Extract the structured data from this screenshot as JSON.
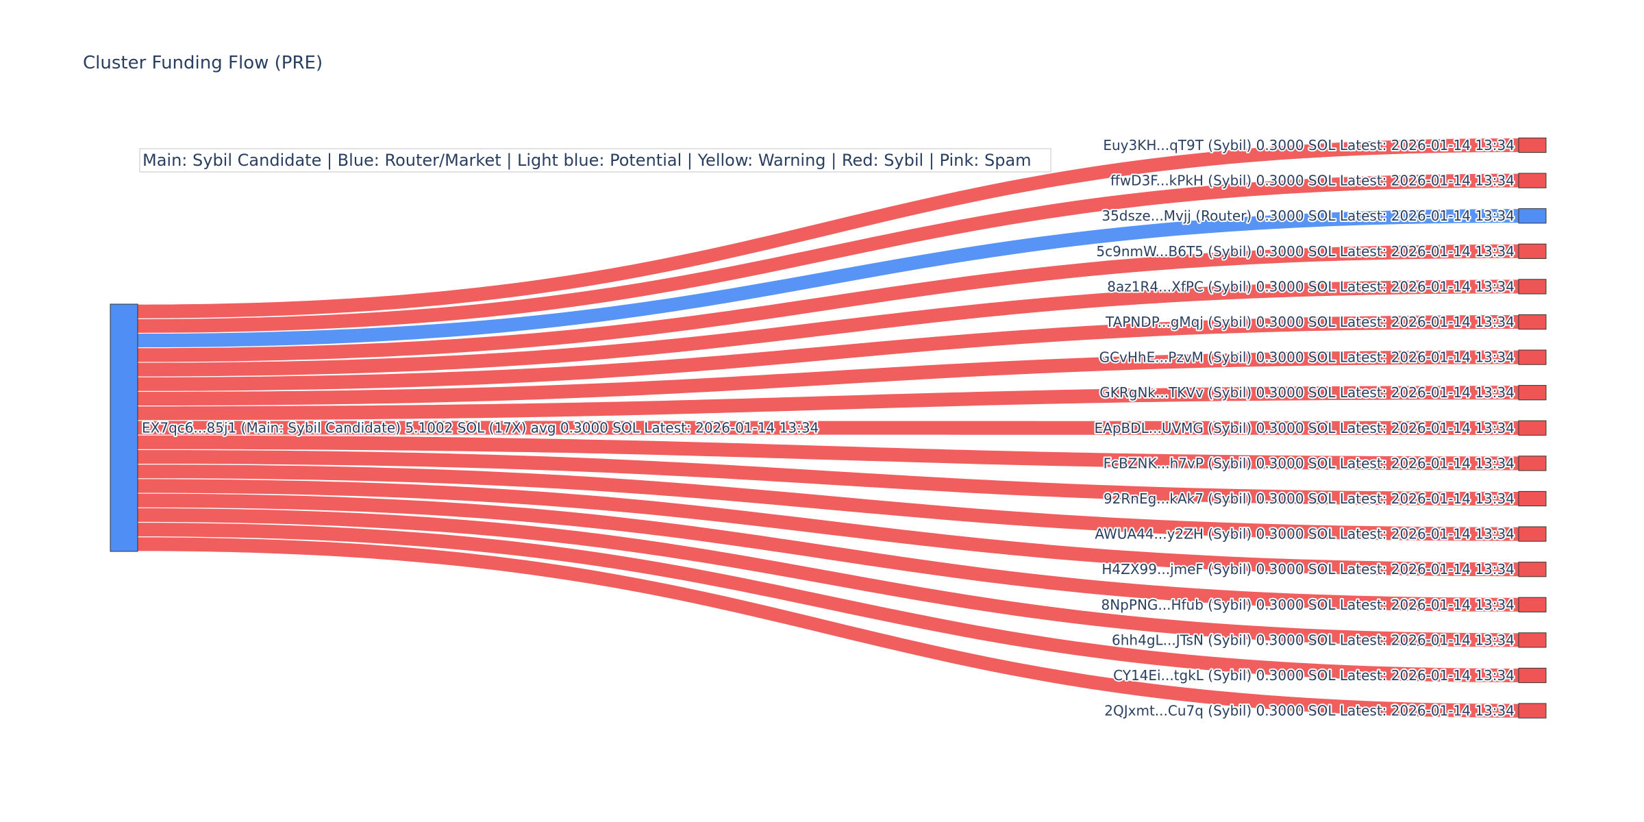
{
  "title": "Cluster Funding Flow (PRE)",
  "legend_text": "Main: Sybil Candidate  |  Blue: Router/Market | Light blue: Potential | Yellow: Warning | Red: Sybil | Pink: Spam",
  "colors": {
    "main": "#4f8ef5",
    "router": "#4f8ef5",
    "sybil": "#ef5555",
    "node_border": "#333333",
    "text": "#2a3f5f"
  },
  "chart_data": {
    "type": "sankey",
    "source": {
      "id": "EX7qc6...85j1",
      "role": "Main: Sybil Candidate",
      "total_sol": 5.1002,
      "count_label": "17X",
      "avg_sol": 0.3,
      "latest": "2026-01-14 13:34",
      "label": "EX7qc6...85j1 (Main: Sybil Candidate) 5.1002 SOL (17X) avg 0.3000 SOL Latest: 2026-01-14 13:34"
    },
    "targets": [
      {
        "id": "Euy3KH...qT9T",
        "role": "Sybil",
        "value": 0.3,
        "label": "Euy3KH...qT9T (Sybil) 0.3000 SOL Latest: 2026-01-14 13:34"
      },
      {
        "id": "ffwD3F...kPkH",
        "role": "Sybil",
        "value": 0.3,
        "label": "ffwD3F...kPkH (Sybil) 0.3000 SOL Latest: 2026-01-14 13:34"
      },
      {
        "id": "35dsze...Mvjj",
        "role": "Router",
        "value": 0.3,
        "label": "35dsze...Mvjj (Router) 0.3000 SOL Latest: 2026-01-14 13:34"
      },
      {
        "id": "5c9nmW...B6T5",
        "role": "Sybil",
        "value": 0.3,
        "label": "5c9nmW...B6T5 (Sybil) 0.3000 SOL Latest: 2026-01-14 13:34"
      },
      {
        "id": "8az1R4...XfPC",
        "role": "Sybil",
        "value": 0.3,
        "label": "8az1R4...XfPC (Sybil) 0.3000 SOL Latest: 2026-01-14 13:34"
      },
      {
        "id": "TAPNDP...gMqj",
        "role": "Sybil",
        "value": 0.3,
        "label": "TAPNDP...gMqj (Sybil) 0.3000 SOL Latest: 2026-01-14 13:34"
      },
      {
        "id": "GCvHhE...PzvM",
        "role": "Sybil",
        "value": 0.3,
        "label": "GCvHhE...PzvM (Sybil) 0.3000 SOL Latest: 2026-01-14 13:34"
      },
      {
        "id": "GKRgNk...TKVv",
        "role": "Sybil",
        "value": 0.3,
        "label": "GKRgNk...TKVv (Sybil) 0.3000 SOL Latest: 2026-01-14 13:34"
      },
      {
        "id": "EApBDL...UVMG",
        "role": "Sybil",
        "value": 0.3,
        "label": "EApBDL...UVMG (Sybil) 0.3000 SOL Latest: 2026-01-14 13:34"
      },
      {
        "id": "FcBZNK...h7vP",
        "role": "Sybil",
        "value": 0.3,
        "label": "FcBZNK...h7vP (Sybil) 0.3000 SOL Latest: 2026-01-14 13:34"
      },
      {
        "id": "92RnEg...kAk7",
        "role": "Sybil",
        "value": 0.3,
        "label": "92RnEg...kAk7 (Sybil) 0.3000 SOL Latest: 2026-01-14 13:34"
      },
      {
        "id": "AWUA44...y2ZH",
        "role": "Sybil",
        "value": 0.3,
        "label": "AWUA44...y2ZH (Sybil) 0.3000 SOL Latest: 2026-01-14 13:34"
      },
      {
        "id": "H4ZX99...jmeF",
        "role": "Sybil",
        "value": 0.3,
        "label": "H4ZX99...jmeF (Sybil) 0.3000 SOL Latest: 2026-01-14 13:34"
      },
      {
        "id": "8NpPNG...Hfub",
        "role": "Sybil",
        "value": 0.3,
        "label": "8NpPNG...Hfub (Sybil) 0.3000 SOL Latest: 2026-01-14 13:34"
      },
      {
        "id": "6hh4gL...JTsN",
        "role": "Sybil",
        "value": 0.3,
        "label": "6hh4gL...JTsN (Sybil) 0.3000 SOL Latest: 2026-01-14 13:34"
      },
      {
        "id": "CY14Ei...tgkL",
        "role": "Sybil",
        "value": 0.3,
        "label": "CY14Ei...tgkL (Sybil) 0.3000 SOL Latest: 2026-01-14 13:34"
      },
      {
        "id": "2QJxmt...Cu7q",
        "role": "Sybil",
        "value": 0.3,
        "label": "2QJxmt...Cu7q (Sybil) 0.3000 SOL Latest: 2026-01-14 13:34"
      }
    ]
  }
}
